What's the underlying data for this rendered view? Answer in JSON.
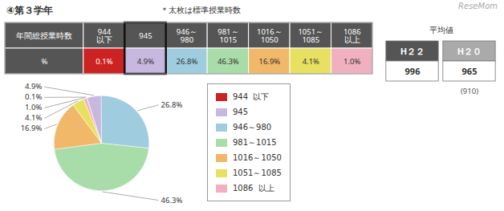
{
  "chart_data": {
    "type": "pie",
    "title": "④第３学年",
    "subtitle": "＊太枚は標準授業時数",
    "categories": [
      "944  以下",
      "945",
      "946～980",
      "981～1015",
      "1016～1050",
      "1051～1085",
      "1086  以上"
    ],
    "values": [
      0.1,
      4.9,
      26.8,
      46.3,
      16.9,
      4.1,
      1.0
    ],
    "value_labels": [
      "0.1%",
      "4.9%",
      "26.8%",
      "46.3%",
      "16.9%",
      "4.1%",
      "1.0%"
    ],
    "colors": [
      "#cc2222",
      "#c8b8e0",
      "#a0cce0",
      "#a8dca8",
      "#f0b868",
      "#e8e060",
      "#f0b0c0"
    ],
    "data_labels": true,
    "legend": "right",
    "annotations": [
      "ReseMom",
      "年間総授業時数",
      "%",
      "944\n以下",
      "945",
      "946～\n980",
      "981～\n1015",
      "1016～\n1050",
      "1051～\n1085",
      "1086\n以上",
      "平均値",
      "H２２",
      "H２０",
      "996",
      "965",
      "(910)"
    ]
  }
}
